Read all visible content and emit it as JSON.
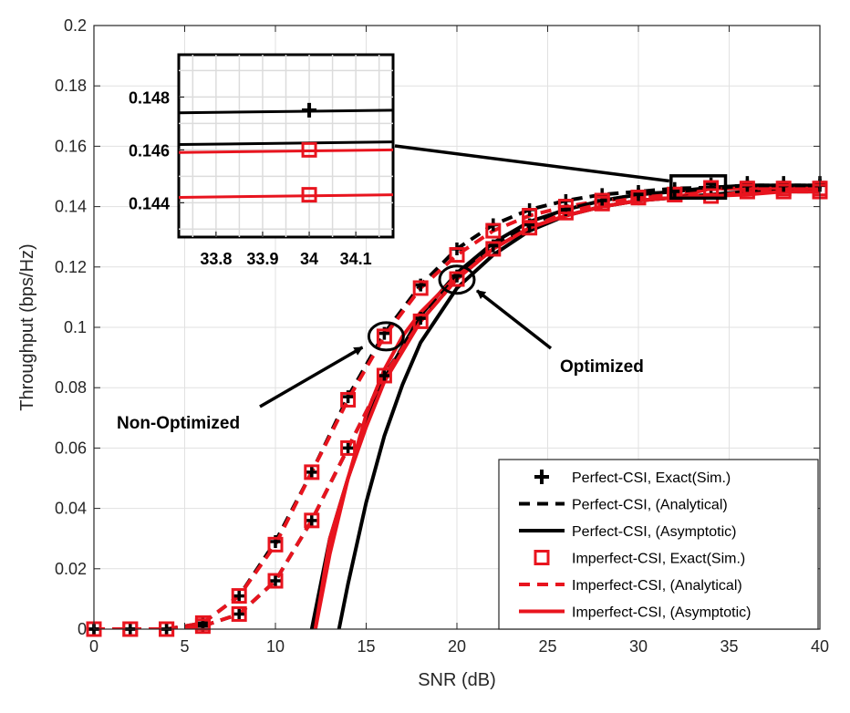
{
  "chart_data": {
    "type": "line",
    "xlabel": "SNR (dB)",
    "ylabel": "Throughput (bps/Hz)",
    "xlim": [
      0,
      40
    ],
    "ylim": [
      0,
      0.2
    ],
    "xticks": [
      0,
      5,
      10,
      15,
      20,
      25,
      30,
      35,
      40
    ],
    "yticks": [
      0,
      0.02,
      0.04,
      0.06,
      0.08,
      0.1,
      0.12,
      0.14,
      0.16,
      0.18,
      0.2
    ],
    "ytick_labels": [
      "0",
      "0.02",
      "0.04",
      "0.06",
      "0.08",
      "0.1",
      "0.12",
      "0.14",
      "0.16",
      "0.18",
      "0.2"
    ],
    "grid": true,
    "legend_position": "bottom-right",
    "series": [
      {
        "name": "Perfect-CSI, Exact(Sim.)",
        "color": "#000000",
        "style": "marker-plus",
        "group": "non-optimized",
        "x": [
          0,
          2,
          4,
          6,
          8,
          10,
          12,
          14,
          16,
          18,
          20,
          22,
          24,
          26,
          28,
          30,
          32,
          34,
          36,
          38,
          40
        ],
        "y": [
          0,
          0,
          0,
          0.002,
          0.011,
          0.029,
          0.052,
          0.077,
          0.098,
          0.114,
          0.126,
          0.134,
          0.139,
          0.142,
          0.144,
          0.145,
          0.146,
          0.1475,
          0.148,
          0.148,
          0.148
        ]
      },
      {
        "name": "Perfect-CSI, (Analytical)",
        "color": "#000000",
        "style": "dashed",
        "group": "non-optimized",
        "x": [
          0,
          2,
          4,
          6,
          8,
          10,
          12,
          14,
          16,
          18,
          20,
          22,
          24,
          26,
          28,
          30,
          32,
          34,
          36,
          38,
          40
        ],
        "y": [
          0,
          0,
          0,
          0.002,
          0.011,
          0.029,
          0.052,
          0.077,
          0.098,
          0.114,
          0.126,
          0.134,
          0.139,
          0.142,
          0.144,
          0.145,
          0.146,
          0.1463,
          0.147,
          0.147,
          0.147
        ]
      },
      {
        "name": "Perfect-CSI, (Asymptotic)",
        "color": "#000000",
        "style": "solid",
        "group": "non-optimized",
        "x": [
          12,
          13,
          14,
          15,
          16,
          18,
          20,
          22,
          24,
          26,
          28,
          30,
          32,
          34,
          36,
          38,
          40
        ],
        "y": [
          0,
          0.03,
          0.05,
          0.068,
          0.083,
          0.104,
          0.118,
          0.128,
          0.135,
          0.139,
          0.142,
          0.144,
          0.145,
          0.1463,
          0.147,
          0.147,
          0.147
        ]
      },
      {
        "name": "Imperfect-CSI, Exact(Sim.)",
        "color": "#e8141e",
        "style": "marker-square",
        "group": "non-optimized",
        "x": [
          0,
          2,
          4,
          6,
          8,
          10,
          12,
          14,
          16,
          18,
          20,
          22,
          24,
          26,
          28,
          30,
          32,
          34,
          36,
          38,
          40
        ],
        "y": [
          0,
          0,
          0,
          0.002,
          0.011,
          0.028,
          0.052,
          0.076,
          0.097,
          0.113,
          0.124,
          0.132,
          0.137,
          0.14,
          0.142,
          0.143,
          0.144,
          0.1462,
          0.146,
          0.146,
          0.146
        ]
      },
      {
        "name": "Imperfect-CSI, (Analytical)",
        "color": "#e8141e",
        "style": "dashed",
        "group": "non-optimized",
        "x": [
          0,
          2,
          4,
          6,
          8,
          10,
          12,
          14,
          16,
          18,
          20,
          22,
          24,
          26,
          28,
          30,
          32,
          34,
          36,
          38,
          40
        ],
        "y": [
          0,
          0,
          0,
          0.002,
          0.011,
          0.028,
          0.052,
          0.076,
          0.097,
          0.113,
          0.124,
          0.132,
          0.137,
          0.14,
          0.142,
          0.143,
          0.144,
          0.146,
          0.146,
          0.146,
          0.146
        ]
      },
      {
        "name": "Imperfect-CSI, (Asymptotic)",
        "color": "#e8141e",
        "style": "solid",
        "group": "non-optimized",
        "x": [
          12.2,
          13,
          14,
          15,
          16,
          18,
          20,
          22,
          24,
          26,
          28,
          30,
          32,
          34,
          36,
          38,
          40
        ],
        "y": [
          0,
          0.03,
          0.05,
          0.067,
          0.082,
          0.102,
          0.116,
          0.126,
          0.133,
          0.137,
          0.14,
          0.142,
          0.143,
          0.146,
          0.146,
          0.146,
          0.146
        ]
      },
      {
        "name": "Perfect-CSI, Exact(Sim.)",
        "color": "#000000",
        "style": "marker-plus",
        "group": "optimized",
        "x": [
          0,
          2,
          4,
          6,
          8,
          10,
          12,
          14,
          16,
          18,
          20,
          22,
          24,
          26,
          28,
          30,
          32,
          34,
          36,
          38,
          40
        ],
        "y": [
          0,
          0,
          0,
          0.001,
          0.005,
          0.016,
          0.036,
          0.06,
          0.084,
          0.103,
          0.117,
          0.127,
          0.134,
          0.139,
          0.142,
          0.144,
          0.145,
          0.146,
          0.147,
          0.147,
          0.147
        ]
      },
      {
        "name": "Perfect-CSI, (Analytical)",
        "color": "#000000",
        "style": "dashed",
        "group": "optimized",
        "x": [
          0,
          2,
          4,
          6,
          8,
          10,
          12,
          14,
          16,
          18,
          20,
          22,
          24,
          26,
          28,
          30,
          32,
          34,
          36,
          38,
          40
        ],
        "y": [
          0,
          0,
          0,
          0.001,
          0.005,
          0.016,
          0.036,
          0.06,
          0.084,
          0.103,
          0.117,
          0.127,
          0.134,
          0.139,
          0.142,
          0.144,
          0.145,
          0.146,
          0.147,
          0.147,
          0.147
        ]
      },
      {
        "name": "Perfect-CSI, (Asymptotic)",
        "color": "#000000",
        "style": "solid",
        "group": "optimized",
        "x": [
          13.5,
          14,
          15,
          16,
          17,
          18,
          20,
          22,
          24,
          26,
          28,
          30,
          32,
          34,
          36,
          38,
          40
        ],
        "y": [
          0,
          0.015,
          0.042,
          0.064,
          0.081,
          0.095,
          0.113,
          0.124,
          0.132,
          0.137,
          0.14,
          0.142,
          0.143,
          0.144,
          0.145,
          0.145,
          0.145
        ]
      },
      {
        "name": "Imperfect-CSI, Exact(Sim.)",
        "color": "#e8141e",
        "style": "marker-square",
        "group": "optimized",
        "x": [
          0,
          2,
          4,
          6,
          8,
          10,
          12,
          14,
          16,
          18,
          20,
          22,
          24,
          26,
          28,
          30,
          32,
          34,
          36,
          38,
          40
        ],
        "y": [
          0,
          0,
          0,
          0.001,
          0.005,
          0.016,
          0.036,
          0.06,
          0.084,
          0.102,
          0.116,
          0.126,
          0.133,
          0.138,
          0.141,
          0.143,
          0.144,
          0.1435,
          0.145,
          0.145,
          0.145
        ]
      },
      {
        "name": "Imperfect-CSI, (Analytical)",
        "color": "#e8141e",
        "style": "dashed",
        "group": "optimized",
        "x": [
          0,
          2,
          4,
          6,
          8,
          10,
          12,
          14,
          16,
          18,
          20,
          22,
          24,
          26,
          28,
          30,
          32,
          34,
          36,
          38,
          40
        ],
        "y": [
          0,
          0,
          0,
          0.001,
          0.005,
          0.016,
          0.036,
          0.06,
          0.084,
          0.102,
          0.116,
          0.126,
          0.133,
          0.138,
          0.141,
          0.143,
          0.144,
          0.1435,
          0.145,
          0.145,
          0.145
        ]
      },
      {
        "name": "Imperfect-CSI, (Asymptotic)",
        "color": "#e8141e",
        "style": "solid",
        "group": "optimized",
        "x": [
          12.2,
          13,
          14,
          15,
          16,
          17,
          18,
          20,
          22,
          24,
          26,
          28,
          30,
          32,
          34,
          36,
          38,
          40
        ],
        "y": [
          0,
          0.025,
          0.05,
          0.071,
          0.086,
          0.097,
          0.105,
          0.117,
          0.126,
          0.133,
          0.137,
          0.14,
          0.142,
          0.143,
          0.1435,
          0.144,
          0.145,
          0.145
        ]
      }
    ],
    "legend": [
      {
        "label": "Perfect-CSI, Exact(Sim.)",
        "color": "#000000",
        "style": "marker-plus"
      },
      {
        "label": "Perfect-CSI, (Analytical)",
        "color": "#000000",
        "style": "dashed"
      },
      {
        "label": "Perfect-CSI, (Asymptotic)",
        "color": "#000000",
        "style": "solid"
      },
      {
        "label": "Imperfect-CSI, Exact(Sim.)",
        "color": "#e8141e",
        "style": "marker-square"
      },
      {
        "label": "Imperfect-CSI, (Analytical)",
        "color": "#e8141e",
        "style": "dashed"
      },
      {
        "label": "Imperfect-CSI, (Asymptotic)",
        "color": "#e8141e",
        "style": "solid"
      }
    ],
    "annotations": [
      {
        "text": "Non-Optimized",
        "points_to": {
          "x": 16,
          "y": 0.097
        }
      },
      {
        "text": "Optimized",
        "points_to": {
          "x": 20,
          "y": 0.117
        }
      }
    ],
    "inset": {
      "zoom_region": {
        "xlim": [
          31.8,
          34.8
        ],
        "ylim": [
          0.1428,
          0.1502
        ]
      },
      "xlim": [
        33.72,
        34.18
      ],
      "ylim": [
        0.1427,
        0.1496
      ],
      "xticks": [
        33.8,
        33.9,
        34,
        34.1
      ],
      "xtick_labels": [
        "33.8",
        "33.9",
        "34",
        "34.1"
      ],
      "yticks": [
        0.144,
        0.146,
        0.148
      ],
      "ytick_labels": [
        "0.144",
        "0.146",
        "0.148"
      ],
      "lines": [
        {
          "color": "#000000",
          "y_start": 0.1474,
          "y_end": 0.1475,
          "marker": "plus",
          "marker_x": 34,
          "marker_y": 0.1475
        },
        {
          "color": "#000000",
          "y_start": 0.1462,
          "y_end": 0.1463,
          "marker": null
        },
        {
          "color": "#e8141e",
          "y_start": 0.1459,
          "y_end": 0.146,
          "marker": "square",
          "marker_x": 34,
          "marker_y": 0.146
        },
        {
          "color": "#e8141e",
          "y_start": 0.1442,
          "y_end": 0.1443,
          "marker": "square",
          "marker_x": 34,
          "marker_y": 0.1435
        }
      ]
    }
  }
}
